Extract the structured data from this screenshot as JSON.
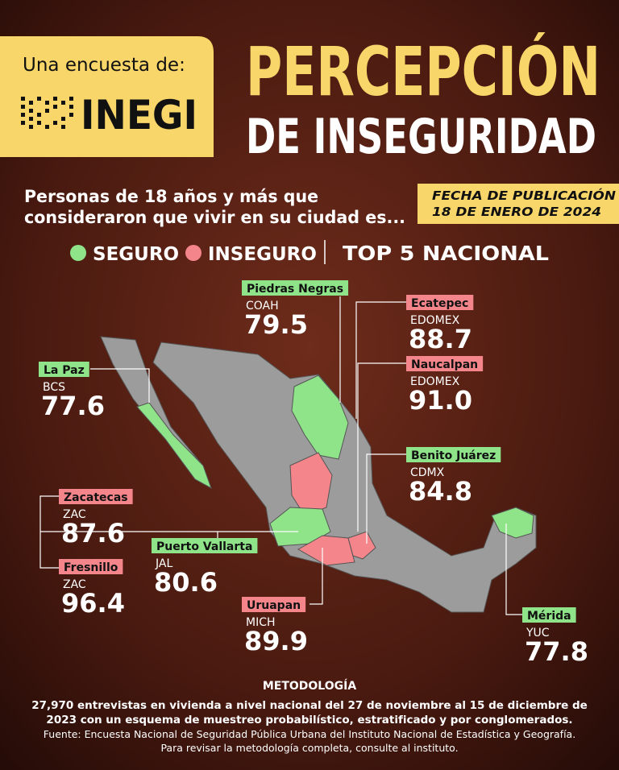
{
  "header": {
    "intro": "Una encuesta de:",
    "brand": "INEGI",
    "title_line1": "PERCEPCIÓN",
    "title_line2": "DE INSEGURIDAD"
  },
  "subtitle": [
    "Personas de 18 años y más que",
    "consideraron que vivir en su ciudad es..."
  ],
  "publication": [
    "FECHA DE PUBLICACIÓN",
    "18 DE ENERO DE 2024"
  ],
  "legend": [
    {
      "label": "SEGURO",
      "color": "#8fe388"
    },
    {
      "label": "INSEGURO",
      "color": "#f4858a"
    }
  ],
  "ranking_label": "TOP 5 NACIONAL",
  "cities": [
    {
      "name": "Piedras Negras",
      "state": "COAH",
      "value": "79.5",
      "color": "#8fe388"
    },
    {
      "name": "Ecatepec",
      "state": "EDOMEX",
      "value": "88.7",
      "color": "#f4858a"
    },
    {
      "name": "Naucalpan",
      "state": "EDOMEX",
      "value": "91.0",
      "color": "#f4858a"
    },
    {
      "name": "La Paz",
      "state": "BCS",
      "value": "77.6",
      "color": "#8fe388"
    },
    {
      "name": "Benito Juárez",
      "state": "CDMX",
      "value": "84.8",
      "color": "#8fe388"
    },
    {
      "name": "Zacatecas",
      "state": "ZAC",
      "value": "87.6",
      "color": "#f4858a"
    },
    {
      "name": "Fresnillo",
      "state": "ZAC",
      "value": "96.4",
      "color": "#f4858a"
    },
    {
      "name": "Puerto Vallarta",
      "state": "JAL",
      "value": "80.6",
      "color": "#8fe388"
    },
    {
      "name": "Uruapan",
      "state": "MICH",
      "value": "89.9",
      "color": "#f4858a"
    },
    {
      "name": "Mérida",
      "state": "YUC",
      "value": "77.8",
      "color": "#8fe388"
    }
  ],
  "methodology": {
    "title": "METODOLOGÍA",
    "lines": [
      "27,970 entrevistas en vivienda a nivel nacional del 27 de noviembre al 15 de diciembre de",
      "2023 con un esquema de muestreo probabilístico, estratificado y por conglomerados.",
      "Fuente: Encuesta Nacional de Seguridad Pública Urbana del Instituto Nacional de Estadística y Geografía.",
      "Para revisar la metodología completa, consulte al instituto."
    ]
  }
}
